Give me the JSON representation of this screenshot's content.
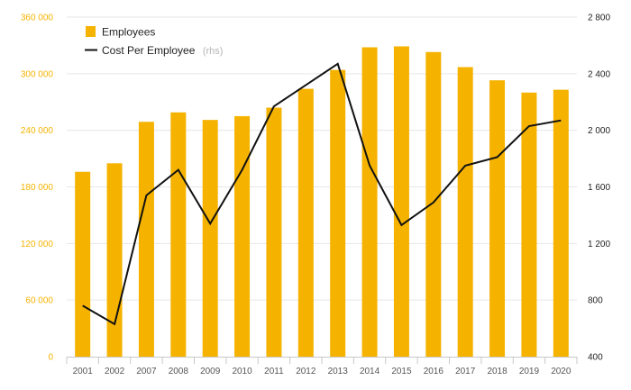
{
  "chart_data": {
    "type": "bar",
    "categories": [
      "2001",
      "2002",
      "2007",
      "2008",
      "2009",
      "2010",
      "2011",
      "2012",
      "2013",
      "2014",
      "2015",
      "2016",
      "2017",
      "2018",
      "2019",
      "2020"
    ],
    "series": [
      {
        "name": "Employees",
        "type": "bar",
        "axis": "left",
        "color": "#f5b300",
        "values": [
          196000,
          205000,
          249000,
          259000,
          251000,
          255000,
          264000,
          284000,
          304000,
          328000,
          329000,
          323000,
          307000,
          293000,
          280000,
          283000
        ]
      },
      {
        "name": "Cost Per Employee",
        "suffix": "(rhs)",
        "type": "line",
        "axis": "right",
        "color": "#111111",
        "values": [
          760,
          630,
          1540,
          1720,
          1340,
          1720,
          2170,
          2320,
          2470,
          1750,
          1330,
          1490,
          1750,
          1810,
          2030,
          2070
        ]
      }
    ],
    "y_left": {
      "ylim": [
        0,
        360000
      ],
      "ticks": [
        "0",
        "60 000",
        "120 000",
        "180 000",
        "240 000",
        "300 000",
        "360 000"
      ],
      "tick_values": [
        0,
        60000,
        120000,
        180000,
        240000,
        300000,
        360000
      ]
    },
    "y_right": {
      "ylim": [
        400,
        2800
      ],
      "ticks": [
        "400",
        "800",
        "1 200",
        "1 600",
        "2 000",
        "2 400",
        "2 800"
      ],
      "tick_values": [
        400,
        800,
        1200,
        1600,
        2000,
        2400,
        2800
      ]
    },
    "legend": {
      "position": "top-left",
      "items": [
        {
          "label": "Employees",
          "sub": ""
        },
        {
          "label": "Cost Per Employee",
          "sub": "(rhs)"
        }
      ]
    },
    "grid": true,
    "title": "",
    "xlabel": "",
    "ylabel": ""
  }
}
